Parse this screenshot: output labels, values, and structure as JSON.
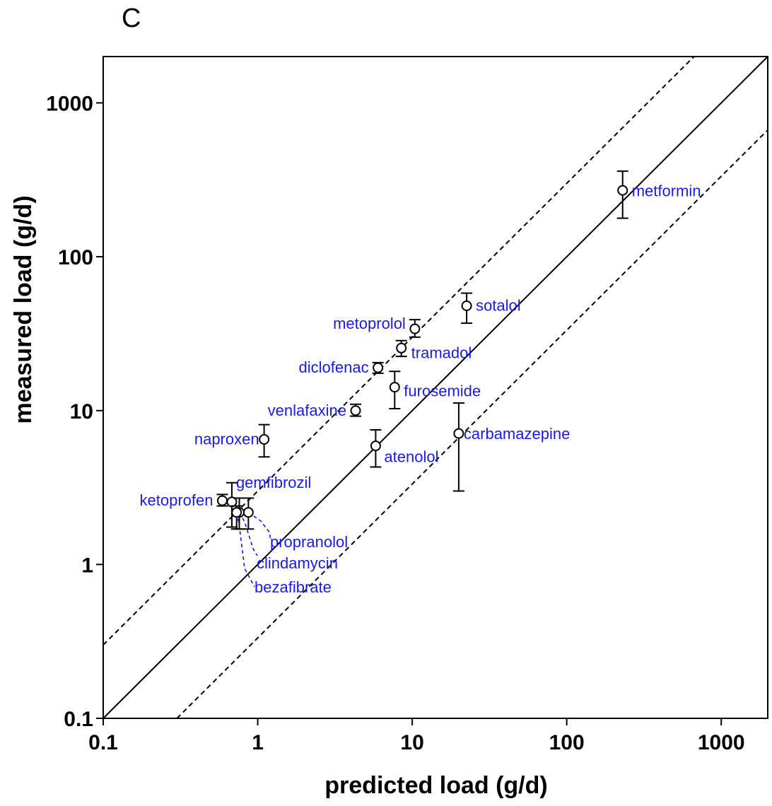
{
  "chart_data": {
    "type": "scatter",
    "panel_label": "C",
    "xlabel": "predicted load (g/d)",
    "ylabel": "measured load (g/d)",
    "x_scale": "log",
    "y_scale": "log",
    "xlim": [
      0.1,
      2000
    ],
    "ylim": [
      0.1,
      2000
    ],
    "x_ticks": [
      0.1,
      1,
      10,
      100,
      1000
    ],
    "x_tick_labels": [
      "0.1",
      "1",
      "10",
      "100",
      "1000"
    ],
    "y_ticks": [
      0.1,
      1,
      10,
      100,
      1000
    ],
    "y_tick_labels": [
      "0.1",
      "1",
      "10",
      "100",
      "1000"
    ],
    "grid": false,
    "reference_lines": [
      {
        "style": "solid",
        "factor": 1
      },
      {
        "style": "dashed",
        "factor": 3
      },
      {
        "style": "dashed",
        "factor": 0.3333
      }
    ],
    "label_color": "#1a1ae6",
    "marker_color": "#000000",
    "points": [
      {
        "label": "metformin",
        "x": 230,
        "y": 270,
        "ylow": 178,
        "yhigh": 360
      },
      {
        "label": "sotalol",
        "x": 22.5,
        "y": 48,
        "ylow": 37,
        "yhigh": 58
      },
      {
        "label": "metoprolol",
        "x": 10.4,
        "y": 34,
        "ylow": 30,
        "yhigh": 39
      },
      {
        "label": "tramadol",
        "x": 8.5,
        "y": 25.5,
        "ylow": 22.5,
        "yhigh": 28.5
      },
      {
        "label": "diclofenac",
        "x": 6.0,
        "y": 19,
        "ylow": 17.5,
        "yhigh": 20.5
      },
      {
        "label": "furosemide",
        "x": 7.7,
        "y": 14.2,
        "ylow": 10.3,
        "yhigh": 18
      },
      {
        "label": "venlafaxine",
        "x": 4.3,
        "y": 10,
        "ylow": 9.2,
        "yhigh": 11
      },
      {
        "label": "carbamazepine",
        "x": 20,
        "y": 7.1,
        "ylow": 3.0,
        "yhigh": 11.2
      },
      {
        "label": "naproxen",
        "x": 1.1,
        "y": 6.5,
        "ylow": 5.0,
        "yhigh": 8.1
      },
      {
        "label": "atenolol",
        "x": 5.8,
        "y": 5.9,
        "ylow": 4.3,
        "yhigh": 7.5
      },
      {
        "label": "ketoprofen",
        "x": 0.59,
        "y": 2.6,
        "ylow": 2.4,
        "yhigh": 2.85
      },
      {
        "label": "gemfibrozil",
        "x": 0.68,
        "y": 2.55,
        "ylow": 1.75,
        "yhigh": 3.4
      },
      {
        "label": "propranolol",
        "x": 0.87,
        "y": 2.18,
        "ylow": 1.7,
        "yhigh": 2.7
      },
      {
        "label": "clindamycin",
        "x": 0.76,
        "y": 2.18,
        "ylow": 1.7,
        "yhigh": 2.7
      },
      {
        "label": "bezafibrate",
        "x": 0.73,
        "y": 2.18,
        "ylow": 1.7,
        "yhigh": 2.4
      }
    ]
  }
}
